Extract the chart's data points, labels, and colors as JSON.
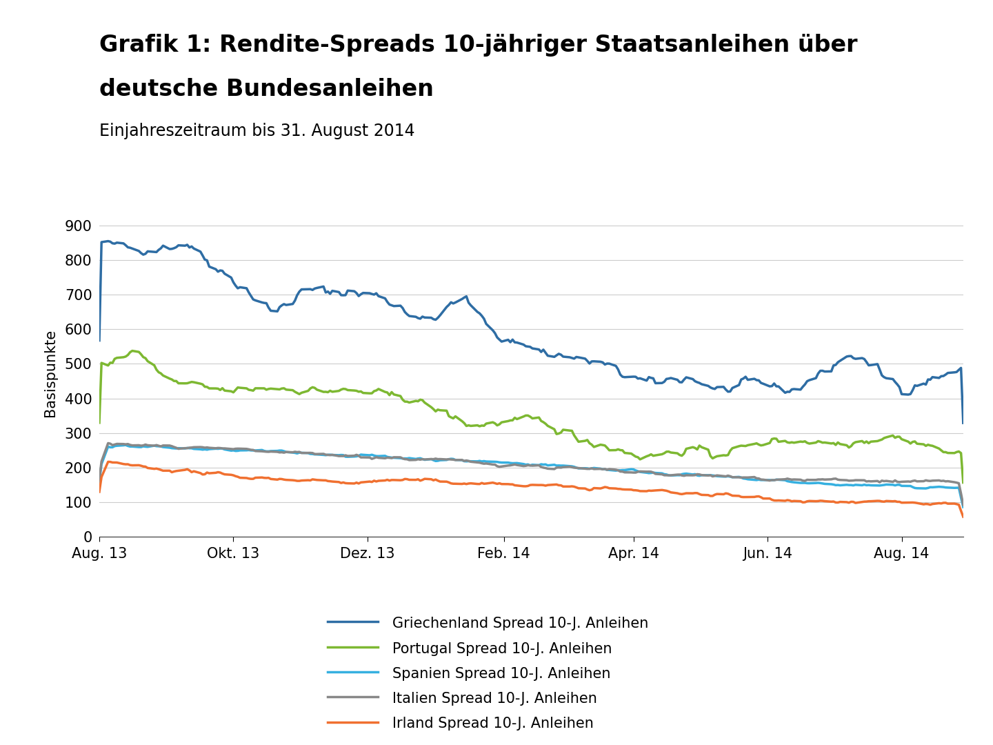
{
  "title_line1": "Grafik 1: Rendite-Spreads 10-jähriger Staatsanleihen über",
  "title_line2": "deutsche Bundesanleihen",
  "subtitle": "Einjahreszeitraum bis 31. August 2014",
  "ylabel": "Basispunkte",
  "ylim": [
    0,
    950
  ],
  "yticks": [
    0,
    100,
    200,
    300,
    400,
    500,
    600,
    700,
    800,
    900
  ],
  "xtick_labels": [
    "Aug. 13",
    "Okt. 13",
    "Dez. 13",
    "Feb. 14",
    "Apr. 14",
    "Jun. 14",
    "Aug. 14"
  ],
  "colors": {
    "griechenland": "#2E6DA4",
    "portugal": "#7DB832",
    "spanien": "#36B0E0",
    "italien": "#888888",
    "irland": "#F07030"
  },
  "legend_labels": [
    "Griechenland Spread 10-J. Anleihen",
    "Portugal Spread 10-J. Anleihen",
    "Spanien Spread 10-J. Anleihen",
    "Italien Spread 10-J. Anleihen",
    "Irland Spread 10-J. Anleihen"
  ],
  "background_color": "#ffffff",
  "grid_color": "#cccccc",
  "title_fontsize": 24,
  "subtitle_fontsize": 17,
  "axis_fontsize": 15,
  "legend_fontsize": 15,
  "line_width": 2.5
}
